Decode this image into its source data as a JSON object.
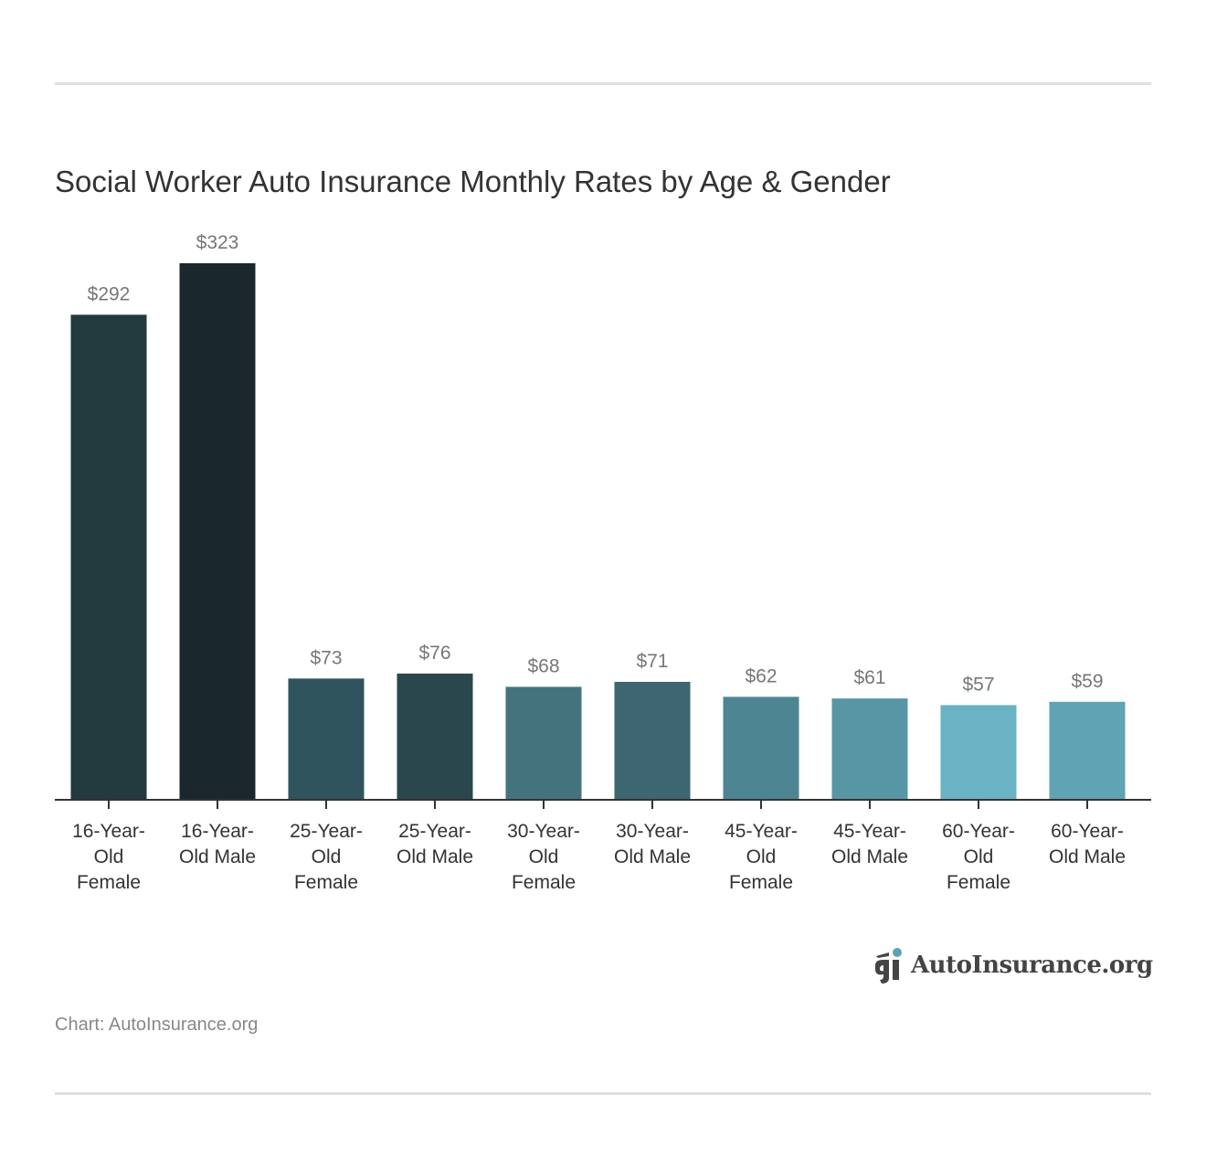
{
  "chart_data": {
    "type": "bar",
    "title": "Social Worker Auto Insurance Monthly Rates by Age & Gender",
    "categories": [
      "16-Year-Old Female",
      "16-Year-Old Male",
      "25-Year-Old Female",
      "25-Year-Old Male",
      "30-Year-Old Female",
      "30-Year-Old Male",
      "45-Year-Old Female",
      "45-Year-Old Male",
      "60-Year-Old Female",
      "60-Year-Old Male"
    ],
    "values": [
      292,
      323,
      73,
      76,
      68,
      71,
      62,
      61,
      57,
      59
    ],
    "value_labels": [
      "$292",
      "$323",
      "$73",
      "$76",
      "$68",
      "$71",
      "$62",
      "$61",
      "$57",
      "$59"
    ],
    "colors": [
      "#22393d",
      "#1a282d",
      "#30545e",
      "#2a474d",
      "#44737e",
      "#3d6670",
      "#4e8593",
      "#5796a5",
      "#69b3c4",
      "#5fa3b4"
    ],
    "xlabel": "",
    "ylabel": "",
    "ylim": [
      0,
      323
    ],
    "grid": false,
    "legend": "none"
  },
  "source": "Chart: AutoInsurance.org",
  "logo": {
    "text": "AutoInsurance.org",
    "accent": "#5aa3b5"
  }
}
